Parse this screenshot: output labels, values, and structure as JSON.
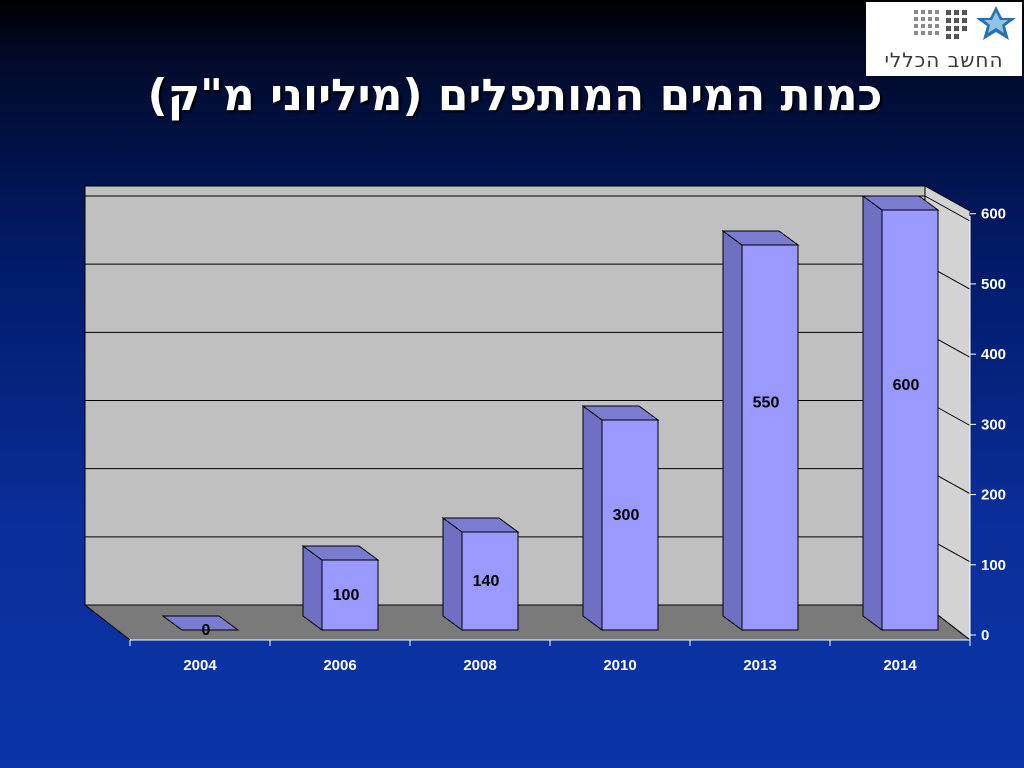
{
  "slide": {
    "title": "כמות המים המותפלים (מיליוני מ\"ק)"
  },
  "logo": {
    "text": "החשב הכללי"
  },
  "chart_data": {
    "type": "bar",
    "title": "כמות המים המותפלים (מיליוני מ\"ק)",
    "categories": [
      "2004",
      "2006",
      "2008",
      "2010",
      "2013",
      "2014"
    ],
    "values": [
      0,
      100,
      140,
      300,
      550,
      600
    ],
    "data_labels": [
      "0",
      "100",
      "140",
      "300",
      "550",
      "600"
    ],
    "ylim": [
      0,
      600
    ],
    "yticks": [
      "0",
      "100",
      "200",
      "300",
      "400",
      "500",
      "600"
    ],
    "y_axis_side": "right",
    "grid": true,
    "style": "3d-columns",
    "colors": {
      "bar_front": "#9999ff",
      "bar_side": "#6f6fc4",
      "bar_top": "#7b7bd0",
      "wall": "#c0c0c0",
      "floor": "#7a7a7a",
      "side_wall": "#d3d3d3"
    }
  }
}
